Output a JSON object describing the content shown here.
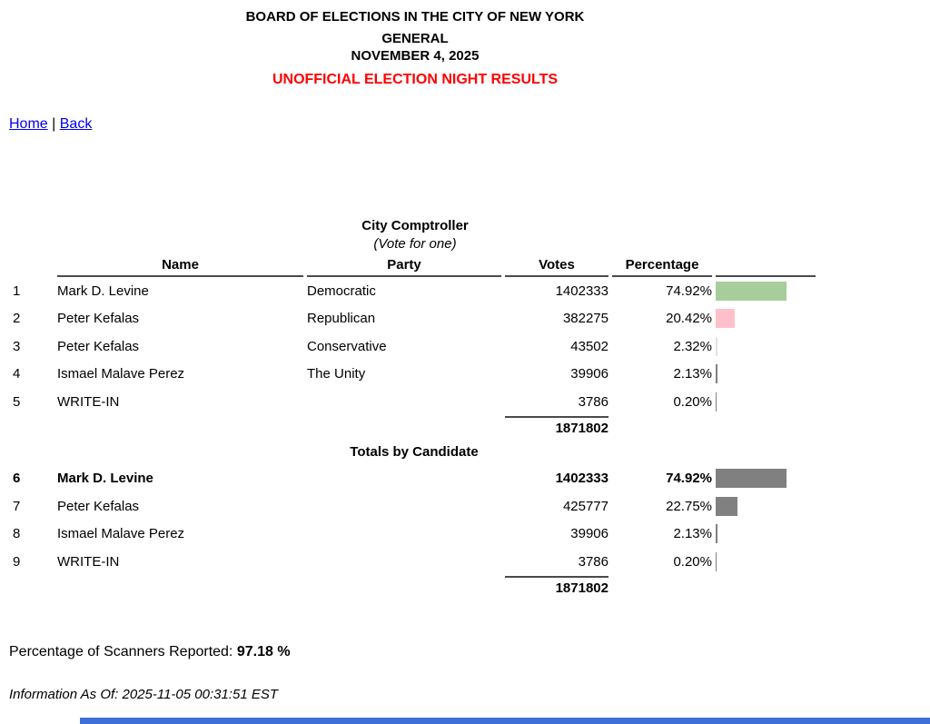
{
  "header": {
    "line1": "BOARD OF ELECTIONS IN THE CITY OF NEW YORK",
    "line2": "GENERAL",
    "line3": "NOVEMBER 4, 2025",
    "banner": "UNOFFICIAL ELECTION NIGHT RESULTS",
    "banner_color": "#ff0000"
  },
  "nav": {
    "home": "Home",
    "separator": "|",
    "back": "Back"
  },
  "contest": {
    "title": "City Comptroller",
    "subtitle": "(Vote for one)",
    "columns": {
      "name": "Name",
      "party": "Party",
      "votes": "Votes",
      "percentage": "Percentage"
    },
    "rows": [
      {
        "num": "1",
        "name": "Mark D. Levine",
        "party": "Democratic",
        "votes": "1402333",
        "pct": "74.92%",
        "pct_value": 74.92,
        "bar_color": "#a7cd9b"
      },
      {
        "num": "2",
        "name": "Peter Kefalas",
        "party": "Republican",
        "votes": "382275",
        "pct": "20.42%",
        "pct_value": 20.42,
        "bar_color": "#ffc0cb"
      },
      {
        "num": "3",
        "name": "Peter Kefalas",
        "party": "Conservative",
        "votes": "43502",
        "pct": "2.32%",
        "pct_value": 2.32,
        "bar_color": "#e3e3e3"
      },
      {
        "num": "4",
        "name": "Ismael Malave Perez",
        "party": "The Unity",
        "votes": "39906",
        "pct": "2.13%",
        "pct_value": 2.13,
        "bar_color": "#808080"
      },
      {
        "num": "5",
        "name": "WRITE-IN",
        "party": "",
        "votes": "3786",
        "pct": "0.20%",
        "pct_value": 0.2,
        "bar_color": "#808080"
      }
    ],
    "total": "1871802",
    "totals_section_title": "Totals by Candidate",
    "totals_rows": [
      {
        "num": "6",
        "name": "Mark D. Levine",
        "votes": "1402333",
        "pct": "74.92%",
        "pct_value": 74.92,
        "bar_color": "#808080",
        "bold": true
      },
      {
        "num": "7",
        "name": "Peter Kefalas",
        "votes": "425777",
        "pct": "22.75%",
        "pct_value": 22.75,
        "bar_color": "#808080",
        "bold": false
      },
      {
        "num": "8",
        "name": "Ismael Malave Perez",
        "votes": "39906",
        "pct": "2.13%",
        "pct_value": 2.13,
        "bar_color": "#808080",
        "bold": false
      },
      {
        "num": "9",
        "name": "WRITE-IN",
        "votes": "3786",
        "pct": "0.20%",
        "pct_value": 0.2,
        "bar_color": "#808080",
        "bold": false
      }
    ],
    "totals_total": "1871802"
  },
  "footer": {
    "scanners_label": "Percentage of Scanners Reported: ",
    "scanners_value": "97.18 %",
    "info_as_of": "Information As Of: 2025-11-05 00:31:51 EST"
  },
  "colors": {
    "democratic_bar": "#a7cd9b",
    "republican_bar": "#ffc0cb",
    "conservative_bar": "#e3e3e3",
    "other_bar": "#808080",
    "rule": "#4a4a4a",
    "banner_red": "#ff0000",
    "link_blue": "#0000ee",
    "bottom_bar_blue": "#3e6fd8"
  }
}
